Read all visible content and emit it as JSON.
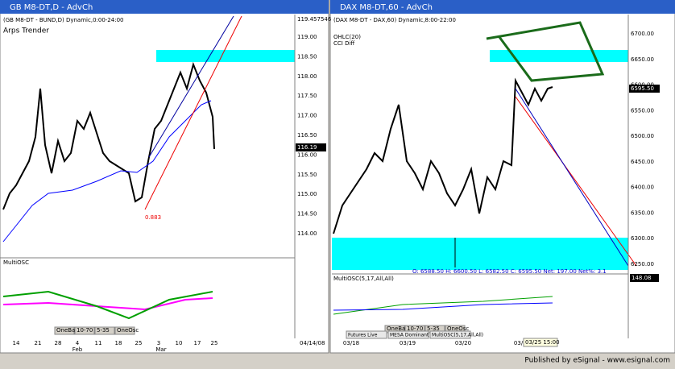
{
  "windows": [
    {
      "title": "GB M8-DT,D - AdvCh",
      "header": "(GB M8-DT - BUND,D) Dynamic,0:00-24:00",
      "study": "Arps Trender",
      "top_label": "119.457546",
      "price_labels": [
        "119.00",
        "118.50",
        "118.00",
        "117.50",
        "117.00",
        "116.50",
        "116.00",
        "115.50",
        "115.00",
        "114.50",
        "114.00"
      ],
      "current": "116.19",
      "annotation": "0.883",
      "osc": "MultiOSC",
      "osc_buttons": [
        "OneBand",
        "10-70",
        "5-35",
        "OneOsc"
      ],
      "x_labels": [
        "14",
        "21",
        "28",
        "4",
        "11",
        "18",
        "25",
        "3",
        "10",
        "17",
        "25"
      ],
      "months": [
        "Feb",
        "Mar"
      ],
      "date": "04/14/08"
    },
    {
      "title": "DAX M8-DT,60 - AdvCh",
      "header": "(DAX M8-DT - DAX,60) Dynamic,8:00-22:00",
      "study": "OHLC(20)",
      "study2": "CCI Diff",
      "price_labels": [
        "6700.00",
        "6650.00",
        "6600.00",
        "6550.00",
        "6500.00",
        "6450.00",
        "6400.00",
        "6350.00",
        "6300.00",
        "6250.00"
      ],
      "current": "6595.50",
      "info": "O: 6588.50   H: 6600.50   L: 6582.50   C: 6595.50   Net: 197.00   Net%: 3.1",
      "osc": "MultiOSC(5,17,All,All)",
      "osc_value": "148.08",
      "osc_buttons": [
        "OneBand",
        "10-70",
        "5-35",
        "OneOsc"
      ],
      "x_labels": [
        "03/18",
        "03/19",
        "03/20",
        "03/25"
      ],
      "cursor_time": "03/25 15:00",
      "tabs": [
        "Futures Live",
        "MESA Dominant Cycle(E)",
        "MultiOSC(5,17,All,All)"
      ]
    }
  ],
  "footer": "Published by eSignal - www.esignal.com"
}
